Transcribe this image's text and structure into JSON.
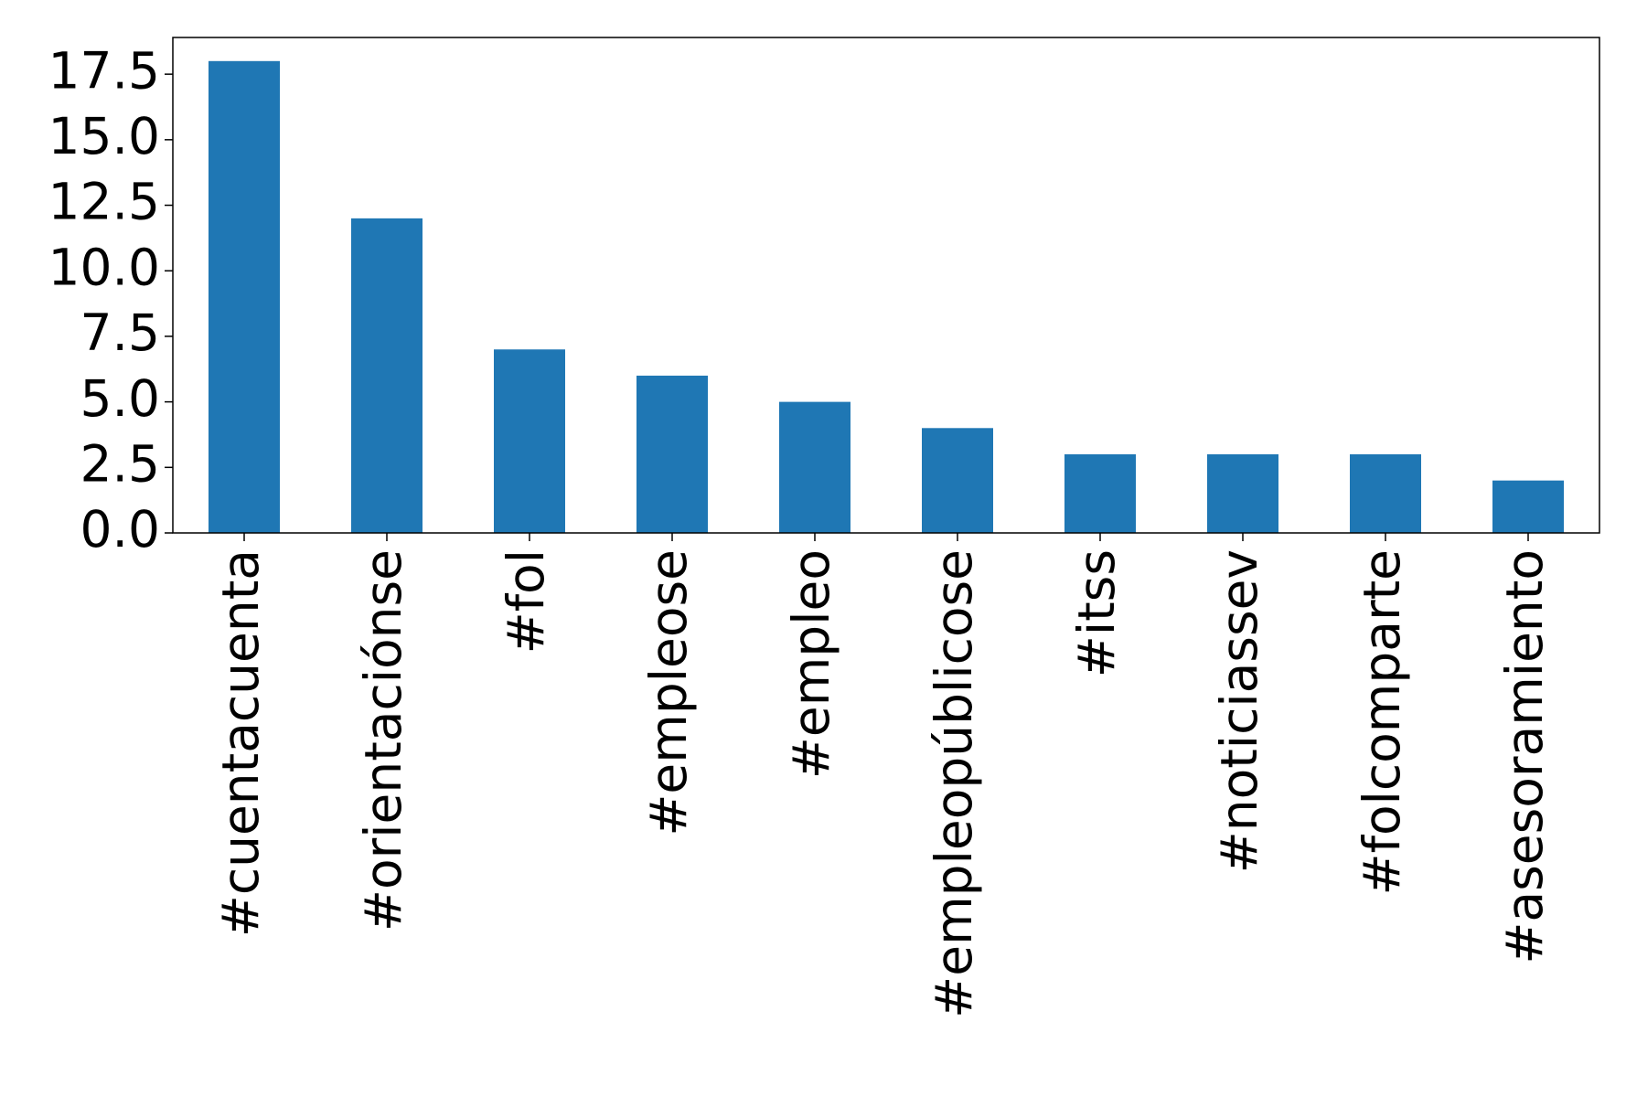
{
  "chart_data": {
    "type": "bar",
    "categories": [
      "#cuentacuenta",
      "#orientaciónse",
      "#fol",
      "#empleose",
      "#empleo",
      "#empleopúblicose",
      "#itss",
      "#noticiassev",
      "#folcomparte",
      "#asesoramiento"
    ],
    "values": [
      18,
      12,
      7,
      6,
      5,
      4,
      3,
      3,
      3,
      2
    ],
    "color": "#1f77b4",
    "ylim": [
      0,
      18.9
    ],
    "yticks": [
      {
        "value": 0,
        "label": "0.0"
      },
      2.5,
      {
        "value": 5,
        "label": "5.0"
      },
      7.5,
      {
        "value": 10,
        "label": "10.0"
      },
      12.5,
      {
        "value": 15,
        "label": "15.0"
      },
      17.5
    ],
    "grid": false
  }
}
